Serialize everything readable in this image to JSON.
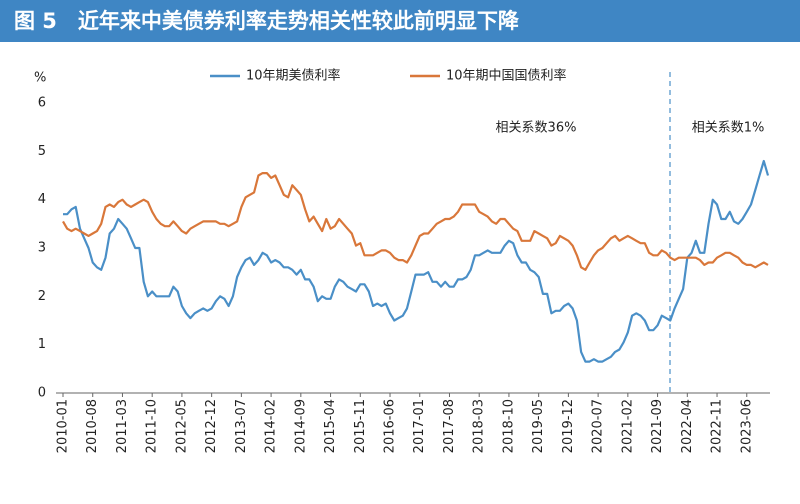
{
  "chart_data": {
    "type": "line",
    "title": "图 5　近年来中美债券利率走势相关性较此前明显下降",
    "y_label": "%",
    "annotations": [
      "相关系数36%",
      "相关系数1%"
    ],
    "categories": [
      "2010-01",
      null,
      null,
      null,
      null,
      null,
      null,
      "2010-08",
      null,
      null,
      null,
      null,
      null,
      null,
      "2011-03",
      null,
      null,
      null,
      null,
      null,
      null,
      "2011-10",
      null,
      null,
      null,
      null,
      null,
      null,
      "2012-05",
      null,
      null,
      null,
      null,
      null,
      null,
      "2012-12",
      null,
      null,
      null,
      null,
      null,
      null,
      "2013-07",
      null,
      null,
      null,
      null,
      null,
      null,
      "2014-02",
      null,
      null,
      null,
      null,
      null,
      null,
      "2014-09",
      null,
      null,
      null,
      null,
      null,
      null,
      "2015-04",
      null,
      null,
      null,
      null,
      null,
      null,
      "2015-11",
      null,
      null,
      null,
      null,
      null,
      null,
      "2016-06",
      null,
      null,
      null,
      null,
      null,
      null,
      "2017-01",
      null,
      null,
      null,
      null,
      null,
      null,
      "2017-08",
      null,
      null,
      null,
      null,
      null,
      null,
      "2018-03",
      null,
      null,
      null,
      null,
      null,
      null,
      "2018-10",
      null,
      null,
      null,
      null,
      null,
      null,
      "2019-05",
      null,
      null,
      null,
      null,
      null,
      null,
      "2019-12",
      null,
      null,
      null,
      null,
      null,
      null,
      "2020-07",
      null,
      null,
      null,
      null,
      null,
      null,
      "2021-02",
      null,
      null,
      null,
      null,
      null,
      null,
      "2021-09",
      null,
      null,
      null,
      null,
      null,
      null,
      "2022-04",
      null,
      null,
      null,
      null,
      null,
      null,
      "2022-11",
      null,
      null,
      null,
      null,
      null,
      null,
      "2023-06",
      null,
      null,
      null,
      null,
      null
    ],
    "series": [
      {
        "name": "10年期美债利率",
        "color": "#4a8fc7",
        "values": [
          3.7,
          3.7,
          3.8,
          3.85,
          3.4,
          3.2,
          3.0,
          2.7,
          2.6,
          2.55,
          2.8,
          3.3,
          3.4,
          3.6,
          3.5,
          3.4,
          3.2,
          3.0,
          3.0,
          2.3,
          2.0,
          2.1,
          2.0,
          2.0,
          2.0,
          2.0,
          2.2,
          2.1,
          1.8,
          1.65,
          1.55,
          1.65,
          1.7,
          1.75,
          1.7,
          1.75,
          1.9,
          2.0,
          1.95,
          1.8,
          2.0,
          2.4,
          2.6,
          2.75,
          2.8,
          2.65,
          2.75,
          2.9,
          2.85,
          2.7,
          2.75,
          2.7,
          2.6,
          2.6,
          2.55,
          2.45,
          2.55,
          2.35,
          2.35,
          2.2,
          1.9,
          2.0,
          1.95,
          1.95,
          2.2,
          2.35,
          2.3,
          2.2,
          2.15,
          2.1,
          2.25,
          2.25,
          2.1,
          1.8,
          1.85,
          1.8,
          1.85,
          1.65,
          1.5,
          1.55,
          1.6,
          1.75,
          2.1,
          2.45,
          2.45,
          2.45,
          2.5,
          2.3,
          2.3,
          2.2,
          2.3,
          2.2,
          2.2,
          2.35,
          2.35,
          2.4,
          2.55,
          2.85,
          2.85,
          2.9,
          2.95,
          2.9,
          2.9,
          2.9,
          3.05,
          3.15,
          3.1,
          2.85,
          2.7,
          2.7,
          2.55,
          2.5,
          2.4,
          2.05,
          2.05,
          1.65,
          1.7,
          1.7,
          1.8,
          1.85,
          1.75,
          1.5,
          0.85,
          0.65,
          0.65,
          0.7,
          0.65,
          0.65,
          0.7,
          0.75,
          0.85,
          0.9,
          1.05,
          1.25,
          1.6,
          1.65,
          1.6,
          1.5,
          1.3,
          1.3,
          1.4,
          1.6,
          1.55,
          1.5,
          1.75,
          1.95,
          2.15,
          2.8,
          2.9,
          3.15,
          2.9,
          2.9,
          3.5,
          4.0,
          3.9,
          3.6,
          3.6,
          3.75,
          3.55,
          3.5,
          3.6,
          3.75,
          3.9,
          4.2,
          4.5,
          4.8,
          4.5
        ]
      },
      {
        "name": "10年期中国国债利率",
        "color": "#d9773a",
        "values": [
          3.55,
          3.4,
          3.35,
          3.4,
          3.35,
          3.3,
          3.25,
          3.3,
          3.35,
          3.5,
          3.85,
          3.9,
          3.85,
          3.95,
          4.0,
          3.9,
          3.85,
          3.9,
          3.95,
          4.0,
          3.95,
          3.75,
          3.6,
          3.5,
          3.45,
          3.45,
          3.55,
          3.45,
          3.35,
          3.3,
          3.4,
          3.45,
          3.5,
          3.55,
          3.55,
          3.55,
          3.55,
          3.5,
          3.5,
          3.45,
          3.5,
          3.55,
          3.85,
          4.05,
          4.1,
          4.15,
          4.5,
          4.55,
          4.55,
          4.45,
          4.5,
          4.3,
          4.1,
          4.05,
          4.3,
          4.2,
          4.1,
          3.8,
          3.55,
          3.65,
          3.5,
          3.35,
          3.6,
          3.4,
          3.45,
          3.6,
          3.5,
          3.4,
          3.3,
          3.05,
          3.1,
          2.85,
          2.85,
          2.85,
          2.9,
          2.95,
          2.95,
          2.9,
          2.8,
          2.75,
          2.75,
          2.7,
          2.85,
          3.05,
          3.25,
          3.3,
          3.3,
          3.4,
          3.5,
          3.55,
          3.6,
          3.6,
          3.65,
          3.75,
          3.9,
          3.9,
          3.9,
          3.9,
          3.75,
          3.7,
          3.65,
          3.55,
          3.5,
          3.6,
          3.6,
          3.5,
          3.4,
          3.35,
          3.15,
          3.15,
          3.15,
          3.35,
          3.3,
          3.25,
          3.2,
          3.05,
          3.1,
          3.25,
          3.2,
          3.15,
          3.05,
          2.85,
          2.6,
          2.55,
          2.7,
          2.85,
          2.95,
          3.0,
          3.1,
          3.2,
          3.25,
          3.15,
          3.2,
          3.25,
          3.2,
          3.15,
          3.1,
          3.1,
          2.9,
          2.85,
          2.85,
          2.95,
          2.9,
          2.8,
          2.75,
          2.8,
          2.8,
          2.8,
          2.8,
          2.8,
          2.75,
          2.65,
          2.7,
          2.7,
          2.8,
          2.85,
          2.9,
          2.9,
          2.85,
          2.8,
          2.7,
          2.65,
          2.65,
          2.6,
          2.65,
          2.7,
          2.65
        ]
      }
    ],
    "ylim": [
      0,
      6
    ],
    "yticks": [
      0,
      1,
      2,
      3,
      4,
      5,
      6
    ],
    "legend": "top"
  }
}
